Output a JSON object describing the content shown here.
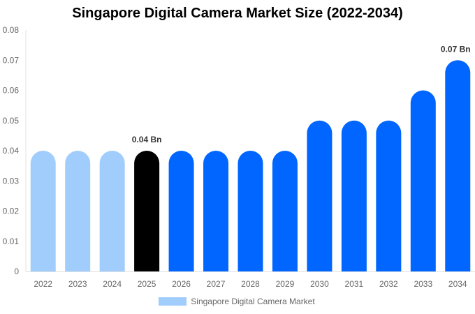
{
  "chart_data": {
    "type": "bar",
    "title": "Singapore Digital Camera Market Size (2022-2034)",
    "xlabel": "",
    "ylabel": "",
    "categories": [
      "2022",
      "2023",
      "2024",
      "2025",
      "2026",
      "2027",
      "2028",
      "2029",
      "2030",
      "2031",
      "2032",
      "2033",
      "2034"
    ],
    "series": [
      {
        "name": "Singapore Digital Camera Market",
        "values": [
          0.04,
          0.04,
          0.04,
          0.04,
          0.04,
          0.04,
          0.04,
          0.04,
          0.05,
          0.05,
          0.05,
          0.06,
          0.07
        ]
      }
    ],
    "ylim": [
      0,
      0.08
    ],
    "yticks": [
      "0",
      "0.01",
      "0.02",
      "0.03",
      "0.04",
      "0.05",
      "0.06",
      "0.07",
      "0.08"
    ],
    "data_labels": [
      {
        "category": "2025",
        "text": "0.04 Bn"
      },
      {
        "category": "2034",
        "text": "0.07 Bn"
      }
    ],
    "bar_colors": [
      "#a0cdfc",
      "#a0cdfc",
      "#a0cdfc",
      "#000000",
      "#0066ff",
      "#0066ff",
      "#0066ff",
      "#0066ff",
      "#0066ff",
      "#0066ff",
      "#0066ff",
      "#0066ff",
      "#0066ff"
    ],
    "legend_color": "#a0cdfc",
    "legend_position": "bottom",
    "grid": false
  }
}
